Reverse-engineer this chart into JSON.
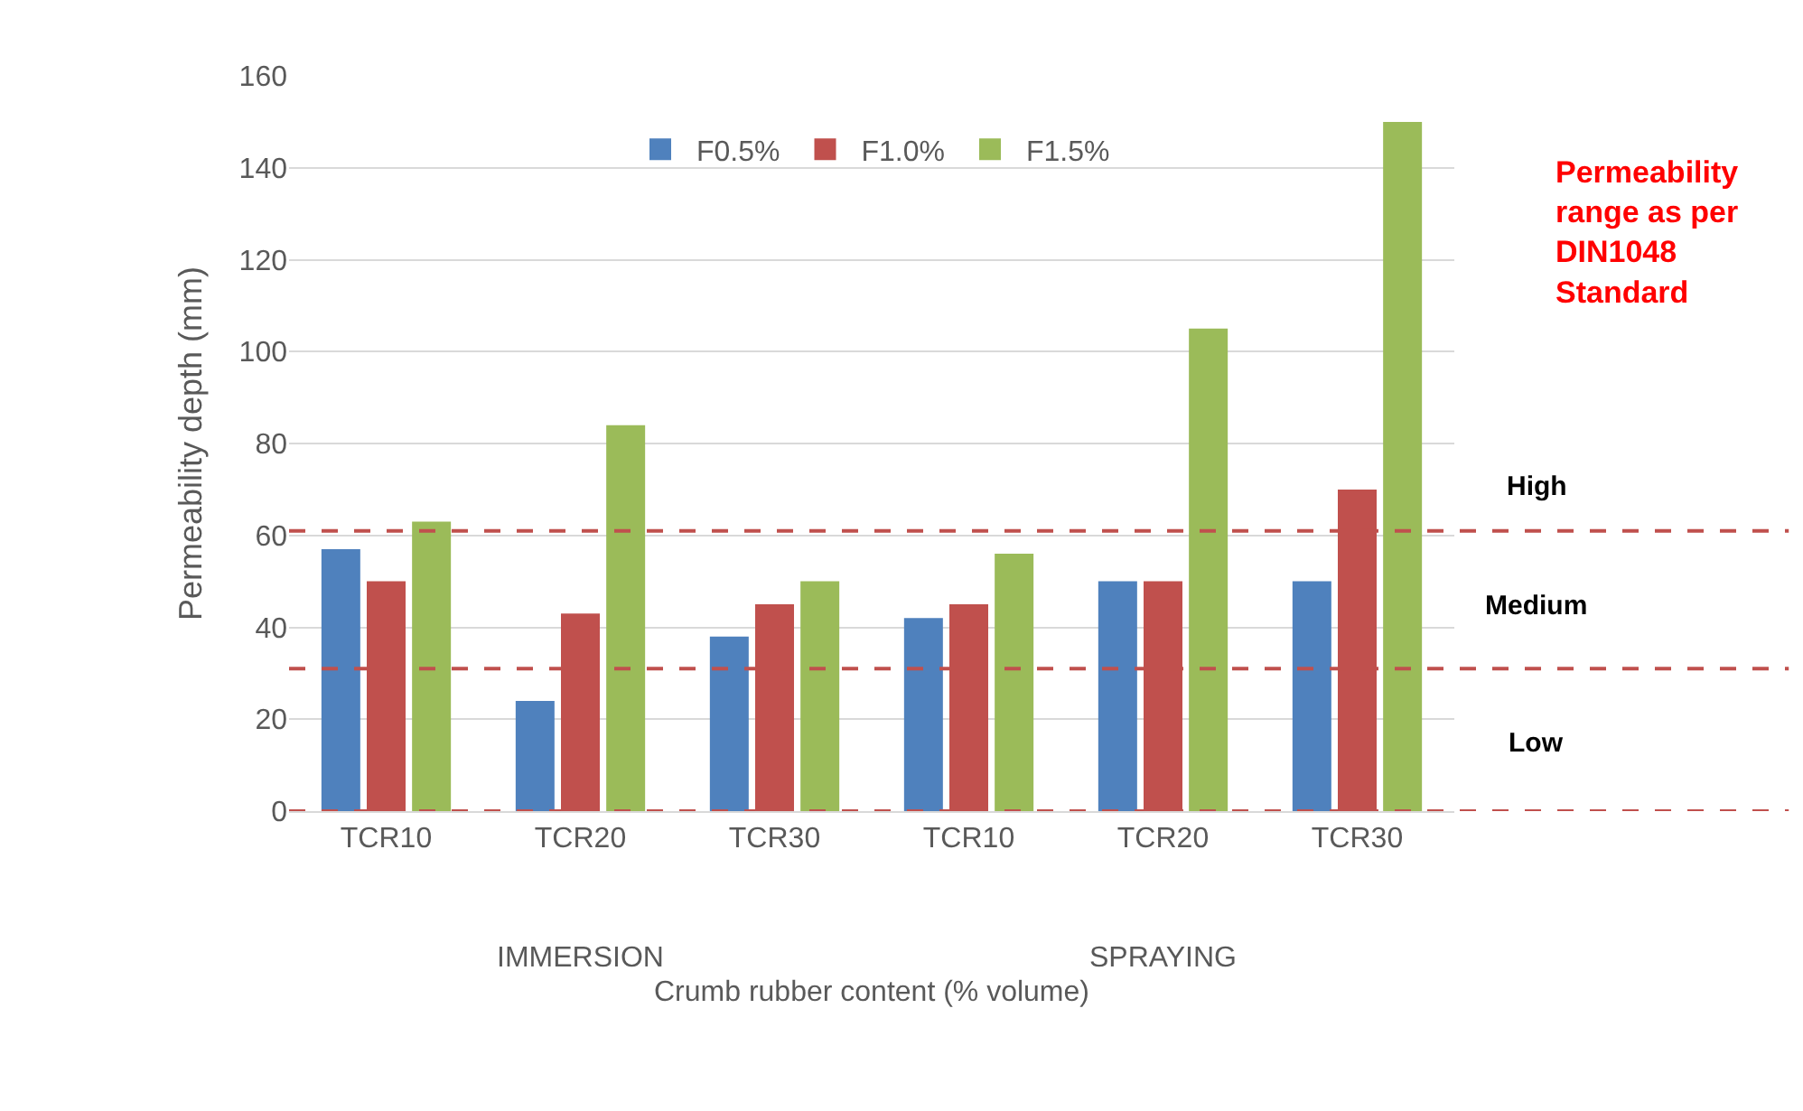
{
  "chart_data": {
    "type": "bar",
    "xlabel": "Crumb rubber content (% volume)",
    "ylabel": "Permeability depth (mm)",
    "categories": [
      "TCR10",
      "TCR20",
      "TCR30",
      "TCR10",
      "TCR20",
      "TCR30"
    ],
    "series": [
      {
        "name": "F0.5%",
        "color": "#4f81bd",
        "values": [
          57,
          24,
          38,
          42,
          50,
          50
        ]
      },
      {
        "name": "F1.0%",
        "color": "#c0504d",
        "values": [
          50,
          43,
          45,
          45,
          50,
          70
        ]
      },
      {
        "name": "F1.5%",
        "color": "#9bbb59",
        "values": [
          63,
          84,
          50,
          56,
          105,
          150
        ]
      }
    ],
    "ylim": [
      0,
      160
    ],
    "yticks": [
      0,
      20,
      40,
      60,
      80,
      100,
      120,
      140,
      160
    ],
    "grid": "y",
    "legend": "top",
    "ref_lines": [
      {
        "axis": "y",
        "value": 61,
        "color": "#c0504d",
        "line_style": "dashed"
      },
      {
        "axis": "y",
        "value": 31,
        "color": "#c0504d",
        "line_style": "dashed"
      },
      {
        "axis": "y",
        "value": 0,
        "color": "#c0504d",
        "line_style": "dashed"
      }
    ],
    "annotations": [
      "High",
      "Medium",
      "Low",
      "IMMERSION",
      "SPRAYING",
      "Permeability\nrange as per\nDIN1048\nStandard"
    ]
  }
}
